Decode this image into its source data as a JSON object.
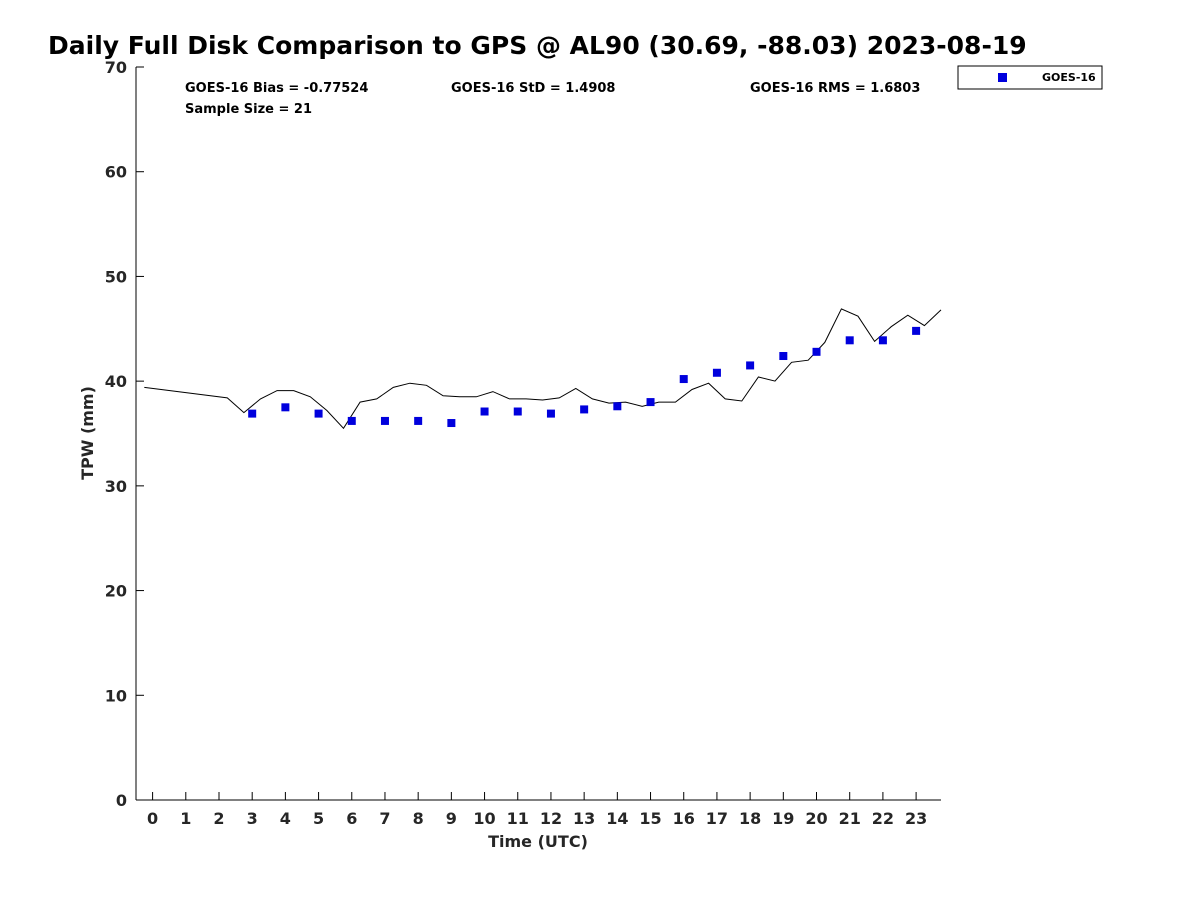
{
  "chart_data": {
    "type": "scatter",
    "title": "Daily Full Disk Comparison to GPS @ AL90 (30.69, -88.03) 2023-08-19",
    "xlabel": "Time (UTC)",
    "ylabel": "TPW (mm)",
    "xlim": [
      -0.5,
      23.75
    ],
    "ylim": [
      0,
      70
    ],
    "x_ticks": [
      "0",
      "1",
      "2",
      "3",
      "4",
      "5",
      "6",
      "7",
      "8",
      "9",
      "10",
      "11",
      "12",
      "13",
      "14",
      "15",
      "16",
      "17",
      "18",
      "19",
      "20",
      "21",
      "22",
      "23"
    ],
    "y_ticks": [
      "0",
      "10",
      "20",
      "30",
      "40",
      "50",
      "60",
      "70"
    ],
    "grid": false,
    "legend_position": "outside-top-right",
    "stats": {
      "bias": "GOES-16 Bias = -0.77524",
      "std": "GOES-16 StD = 1.4908",
      "rms": "GOES-16 RMS = 1.6803",
      "sample": "Sample Size = 21"
    },
    "series": [
      {
        "name": "GOES-16",
        "kind": "scatter",
        "marker": "square",
        "color": "#0000dd",
        "x": [
          3,
          4,
          5,
          6,
          7,
          8,
          9,
          10,
          11,
          12,
          13,
          14,
          15,
          16,
          17,
          18,
          19,
          20,
          21,
          22,
          23
        ],
        "y": [
          36.9,
          37.5,
          36.9,
          36.2,
          36.2,
          36.2,
          36.0,
          37.1,
          37.1,
          36.9,
          37.3,
          37.6,
          38.0,
          40.2,
          40.8,
          41.5,
          42.4,
          42.8,
          43.9,
          43.9,
          44.8
        ]
      },
      {
        "kind": "line",
        "color": "#000000",
        "x": [
          -0.25,
          2.25,
          2.75,
          3.25,
          3.75,
          4.25,
          4.75,
          5.25,
          5.75,
          6.25,
          6.75,
          7.25,
          7.75,
          8.25,
          8.75,
          9.25,
          9.75,
          10.25,
          10.75,
          11.25,
          11.75,
          12.25,
          12.75,
          13.25,
          13.75,
          14.25,
          14.75,
          15.25,
          15.75,
          16.25,
          16.75,
          17.25,
          17.75,
          18.25,
          18.75,
          19.25,
          19.75,
          20.25,
          20.75,
          21.25,
          21.75,
          22.25,
          22.75,
          23.25,
          23.75
        ],
        "y": [
          39.4,
          38.4,
          37.0,
          38.3,
          39.1,
          39.1,
          38.5,
          37.2,
          35.5,
          38.0,
          38.3,
          39.4,
          39.8,
          39.6,
          38.6,
          38.5,
          38.5,
          39.0,
          38.3,
          38.3,
          38.2,
          38.4,
          39.3,
          38.3,
          37.9,
          38.0,
          37.6,
          38.0,
          38.0,
          39.2,
          39.8,
          38.3,
          38.1,
          40.4,
          40.0,
          41.8,
          42.0,
          43.7,
          46.9,
          46.2,
          43.8,
          45.2,
          46.3,
          45.3,
          46.8
        ]
      }
    ]
  }
}
